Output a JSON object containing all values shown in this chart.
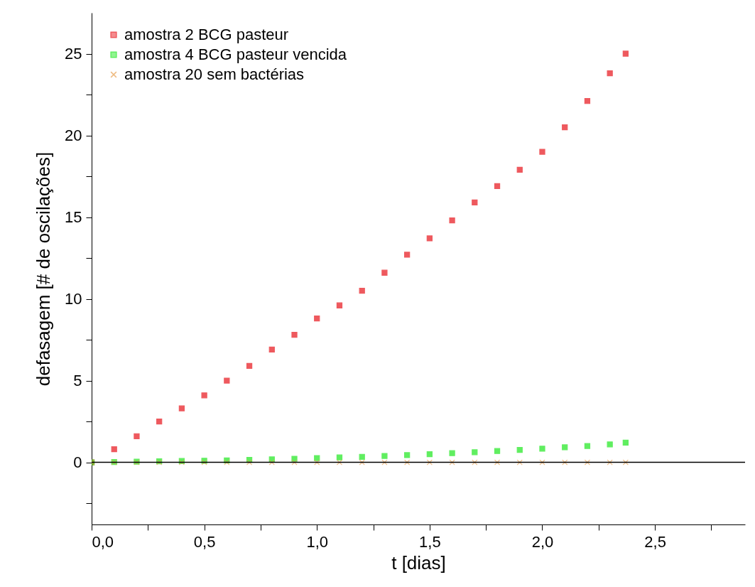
{
  "chart_data": {
    "type": "scatter",
    "xlabel": "t  [dias]",
    "ylabel": "defasagem [# de oscilações]",
    "xlim": [
      0,
      2.9
    ],
    "ylim": [
      -3.8,
      27.5
    ],
    "xticks": [
      {
        "value": 0,
        "label": "0,0"
      },
      {
        "value": 0.25,
        "label": null
      },
      {
        "value": 0.5,
        "label": "0,5"
      },
      {
        "value": 0.75,
        "label": null
      },
      {
        "value": 1,
        "label": "1,0"
      },
      {
        "value": 1.25,
        "label": null
      },
      {
        "value": 1.5,
        "label": "1,5"
      },
      {
        "value": 1.75,
        "label": null
      },
      {
        "value": 2,
        "label": "2,0"
      },
      {
        "value": 2.25,
        "label": null
      },
      {
        "value": 2.5,
        "label": "2,5"
      },
      {
        "value": 2.75,
        "label": null
      }
    ],
    "yticks": [
      {
        "value": -2.5,
        "label": null
      },
      0,
      {
        "value": 2.5,
        "label": null
      },
      5,
      {
        "value": 7.5,
        "label": null
      },
      10,
      {
        "value": 12.5,
        "label": null
      },
      15,
      {
        "value": 17.5,
        "label": null
      },
      20,
      {
        "value": 22.5,
        "label": null
      },
      25
    ],
    "x": [
      0,
      0.1,
      0.2,
      0.3,
      0.4,
      0.5,
      0.6,
      0.7,
      0.8,
      0.9,
      1.0,
      1.1,
      1.2,
      1.3,
      1.4,
      1.5,
      1.6,
      1.7,
      1.8,
      1.9,
      2.0,
      2.1,
      2.2,
      2.3,
      2.37
    ],
    "series": [
      {
        "name": "amostra 2 BCG pasteur",
        "color": "#e8141b",
        "marker": "square",
        "values": [
          0,
          0.8,
          1.6,
          2.5,
          3.3,
          4.1,
          5.0,
          5.9,
          6.9,
          7.8,
          8.8,
          9.6,
          10.5,
          11.6,
          12.7,
          13.7,
          14.8,
          15.9,
          16.9,
          17.9,
          19.0,
          20.5,
          22.1,
          23.8,
          25.0
        ]
      },
      {
        "name": "amostra 4 BCG pasteur vencida",
        "color": "#1ee81e",
        "marker": "square",
        "values": [
          0,
          0.02,
          0.04,
          0.06,
          0.08,
          0.1,
          0.12,
          0.15,
          0.18,
          0.22,
          0.26,
          0.3,
          0.34,
          0.39,
          0.44,
          0.5,
          0.56,
          0.62,
          0.69,
          0.76,
          0.84,
          0.92,
          1.0,
          1.1,
          1.2
        ]
      },
      {
        "name": "amostra 20 sem bactérias",
        "color": "#e8a050",
        "marker": "cross",
        "values": [
          0,
          0,
          0,
          0,
          0,
          0,
          0,
          0,
          0,
          0,
          0,
          0,
          0,
          0,
          0,
          0,
          0,
          0,
          0,
          0,
          0,
          0,
          0,
          0,
          0
        ]
      }
    ],
    "ref_lines": [
      {
        "axis": "y",
        "value": 0,
        "color": "#000000"
      }
    ],
    "legend": "top left",
    "grid": false
  }
}
